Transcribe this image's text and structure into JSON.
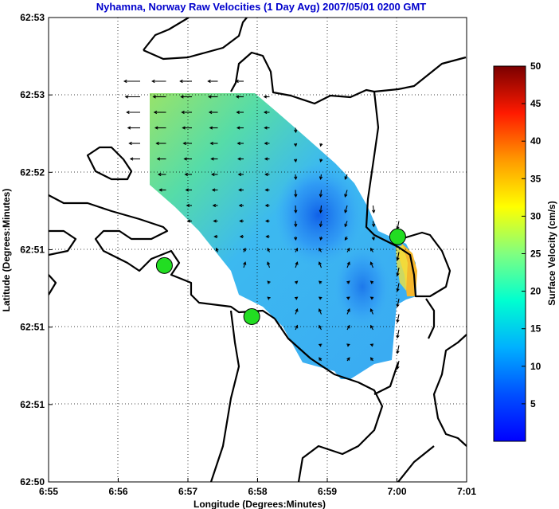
{
  "chart_data": {
    "type": "vector_field",
    "title": "Nyhamna, Norway Raw Velocities (1 Day Avg) 2007/05/01 0200 GMT",
    "xlabel": "Longitude (Degrees:Minutes)",
    "ylabel": "Latitude (Degrees:Minutes)",
    "x_ticks": [
      "6:55",
      "6:56",
      "6:57",
      "6:58",
      "6:59",
      "7:00",
      "7:01"
    ],
    "y_ticks": [
      "62:53",
      "62:53",
      "62:52",
      "62:51",
      "62:51",
      "62:51",
      "62:50"
    ],
    "xlim": [
      6.9167,
      7.0167
    ],
    "ylim": [
      62.8333,
      62.8833
    ],
    "grid": true,
    "colorbar": {
      "label": "Surface Velocity (cm/s)",
      "ticks": [
        "5",
        "10",
        "15",
        "20",
        "25",
        "30",
        "35",
        "40",
        "45",
        "50"
      ],
      "range": [
        0,
        50
      ],
      "colormap": "jet"
    },
    "stations": [
      {
        "lon": 6.9444,
        "lat": 62.8566,
        "color": "#22dd22"
      },
      {
        "lon": 6.9653,
        "lat": 62.8511,
        "color": "#22dd22"
      },
      {
        "lon": 7.0002,
        "lat": 62.8597,
        "color": "#22dd22"
      }
    ],
    "vectors_note": "one-day averaged surface current vectors, roughly 0-25 cm/s"
  }
}
